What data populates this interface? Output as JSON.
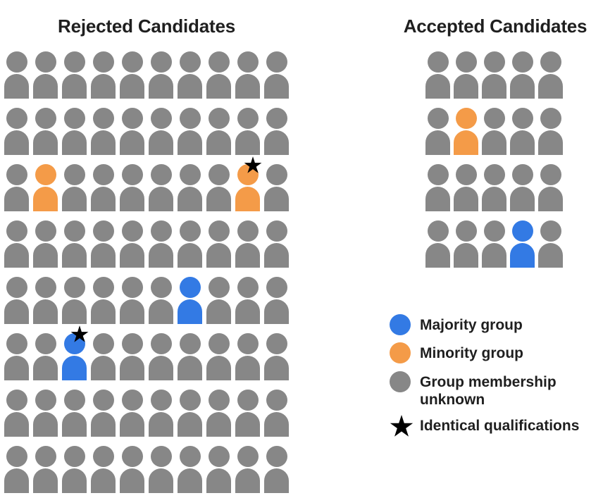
{
  "rejected": {
    "title": "Rejected Candidates",
    "columns": 10,
    "rows": [
      [
        "unknown",
        "unknown",
        "unknown",
        "unknown",
        "unknown",
        "unknown",
        "unknown",
        "unknown",
        "unknown",
        "unknown"
      ],
      [
        "unknown",
        "unknown",
        "unknown",
        "unknown",
        "unknown",
        "unknown",
        "unknown",
        "unknown",
        "unknown",
        "unknown"
      ],
      [
        "unknown",
        "minority",
        "unknown",
        "unknown",
        "unknown",
        "unknown",
        "unknown",
        "unknown",
        "minority-star",
        "unknown"
      ],
      [
        "unknown",
        "unknown",
        "unknown",
        "unknown",
        "unknown",
        "unknown",
        "unknown",
        "unknown",
        "unknown",
        "unknown"
      ],
      [
        "unknown",
        "unknown",
        "unknown",
        "unknown",
        "unknown",
        "unknown",
        "majority",
        "unknown",
        "unknown",
        "unknown"
      ],
      [
        "unknown",
        "unknown",
        "majority-star",
        "unknown",
        "unknown",
        "unknown",
        "unknown",
        "unknown",
        "unknown",
        "unknown"
      ],
      [
        "unknown",
        "unknown",
        "unknown",
        "unknown",
        "unknown",
        "unknown",
        "unknown",
        "unknown",
        "unknown",
        "unknown"
      ],
      [
        "unknown",
        "unknown",
        "unknown",
        "unknown",
        "unknown",
        "unknown",
        "unknown",
        "unknown",
        "unknown",
        "unknown"
      ]
    ]
  },
  "accepted": {
    "title": "Accepted Candidates",
    "columns": 5,
    "rows": [
      [
        "unknown",
        "unknown",
        "unknown",
        "unknown",
        "unknown"
      ],
      [
        "unknown",
        "minority",
        "unknown",
        "unknown",
        "unknown"
      ],
      [
        "unknown",
        "unknown",
        "unknown",
        "unknown",
        "unknown"
      ],
      [
        "unknown",
        "unknown",
        "unknown",
        "majority",
        "unknown"
      ]
    ]
  },
  "legend": {
    "items": [
      {
        "swatch": "majority",
        "label": "Majority group"
      },
      {
        "swatch": "minority",
        "label": "Minority group"
      },
      {
        "swatch": "unknown",
        "label": "Group membership\nunknown"
      },
      {
        "swatch": "star",
        "label": "Identical qualifications"
      }
    ]
  },
  "colors": {
    "majority": "#337AE4",
    "minority": "#F49B48",
    "unknown": "#878787",
    "star": "#000000",
    "text": "#1F1F1F"
  }
}
